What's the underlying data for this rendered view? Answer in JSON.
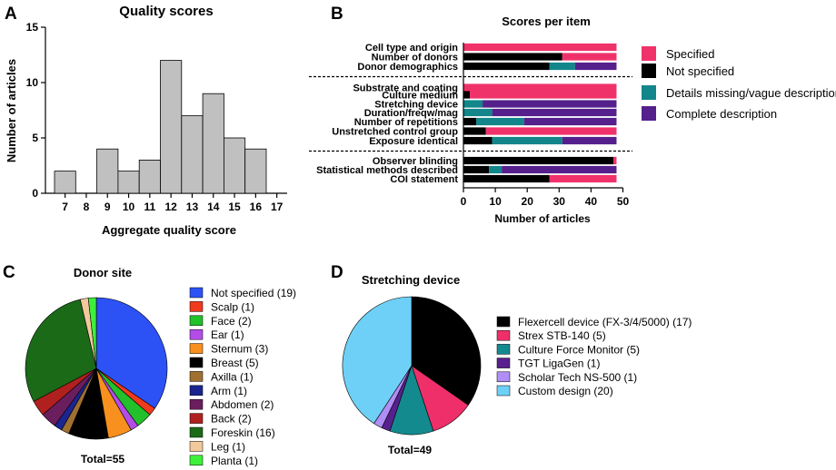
{
  "panels": {
    "A": {
      "letter": "A"
    },
    "B": {
      "letter": "B"
    },
    "C": {
      "letter": "C"
    },
    "D": {
      "letter": "D"
    }
  },
  "chart_data": [
    {
      "id": "A",
      "type": "bar",
      "title": "Quality scores",
      "xlabel": "Aggregate quality score",
      "ylabel": "Number of articles",
      "categories": [
        "7",
        "8",
        "9",
        "10",
        "11",
        "12",
        "13",
        "14",
        "15",
        "16",
        "17"
      ],
      "values": [
        2,
        0,
        4,
        2,
        3,
        12,
        7,
        9,
        5,
        4,
        0
      ],
      "ylim": [
        0,
        15
      ],
      "yticks": [
        "0",
        "5",
        "10",
        "15"
      ],
      "colors": {
        "bar": "#c0c0c0",
        "edge": "#000000"
      }
    },
    {
      "id": "B",
      "type": "bar",
      "orientation": "horizontal",
      "stacked": true,
      "title": "Scores per item",
      "xlabel": "Number of articles",
      "xlim": [
        0,
        50
      ],
      "xticks": [
        "0",
        "10",
        "20",
        "30",
        "40",
        "50"
      ],
      "categories": [
        "Cell type and origin",
        "Number of donors",
        "Donor demographics",
        "Substrate and coating",
        "Culture medium",
        "Stretching device",
        "Duration/freqw/mag",
        "Number of repetitions",
        "Unstretched control group",
        "Exposure identical",
        "Observer blinding",
        "Statistical methods described",
        "COI statement"
      ],
      "groups": [
        3,
        7,
        3
      ],
      "series": [
        {
          "name": "Not specified",
          "color": "#000000",
          "values": [
            0,
            31,
            27,
            0,
            2,
            0,
            0,
            4,
            7,
            9,
            47,
            8,
            27
          ]
        },
        {
          "name": "Details missing/vague description",
          "color": "#12868a",
          "values": [
            0,
            0,
            8,
            0,
            0,
            6,
            9,
            15,
            0,
            22,
            0,
            4,
            0
          ]
        },
        {
          "name": "Complete description",
          "color": "#55208c",
          "values": [
            0,
            0,
            13,
            0,
            0,
            42,
            39,
            29,
            0,
            17,
            0,
            36,
            0
          ]
        },
        {
          "name": "Specified",
          "color": "#f0326a",
          "values": [
            48,
            17,
            0,
            48,
            46,
            0,
            0,
            0,
            41,
            0,
            1,
            0,
            21
          ]
        }
      ],
      "legend": [
        {
          "name": "Specified",
          "color": "#f0326a"
        },
        {
          "name": "Not specified",
          "color": "#000000"
        },
        {
          "name": "Details missing/vague description",
          "color": "#12868a"
        },
        {
          "name": "Complete description",
          "color": "#55208c"
        }
      ]
    },
    {
      "id": "C",
      "type": "pie",
      "title": "Donor site",
      "total_label": "Total=55",
      "slices": [
        {
          "label": "Not specified (19)",
          "value": 19,
          "color": "#2c52f5"
        },
        {
          "label": "Scalp (1)",
          "value": 1,
          "color": "#f03a1e"
        },
        {
          "label": "Face (2)",
          "value": 2,
          "color": "#22c02a"
        },
        {
          "label": "Ear (1)",
          "value": 1,
          "color": "#b44ce8"
        },
        {
          "label": "Sternum (3)",
          "value": 3,
          "color": "#f7901e"
        },
        {
          "label": "Breast (5)",
          "value": 5,
          "color": "#000000"
        },
        {
          "label": "Axilla (1)",
          "value": 1,
          "color": "#a07030"
        },
        {
          "label": "Arm (1)",
          "value": 1,
          "color": "#1a2590"
        },
        {
          "label": "Abdomen (2)",
          "value": 2,
          "color": "#6a1e5e"
        },
        {
          "label": "Back (2)",
          "value": 2,
          "color": "#b0201e"
        },
        {
          "label": "Foreskin (16)",
          "value": 16,
          "color": "#1a6a18"
        },
        {
          "label": "Leg (1)",
          "value": 1,
          "color": "#f2c99a"
        },
        {
          "label": "Planta (1)",
          "value": 1,
          "color": "#3ef03a"
        }
      ]
    },
    {
      "id": "D",
      "type": "pie",
      "title": "Stretching device",
      "total_label": "Total=49",
      "slices": [
        {
          "label": "Flexercell device (FX-3/4/5000) (17)",
          "value": 17,
          "color": "#000000"
        },
        {
          "label": "Strex STB-140 (5)",
          "value": 5,
          "color": "#ee2f6a"
        },
        {
          "label": "Culture Force Monitor (5)",
          "value": 5,
          "color": "#138a8e"
        },
        {
          "label": "TGT LigaGen (1)",
          "value": 1,
          "color": "#58208e"
        },
        {
          "label": "Scholar Tech NS-500 (1)",
          "value": 1,
          "color": "#b08ef5"
        },
        {
          "label": "Custom design (20)",
          "value": 20,
          "color": "#6ed0f7"
        }
      ]
    }
  ]
}
